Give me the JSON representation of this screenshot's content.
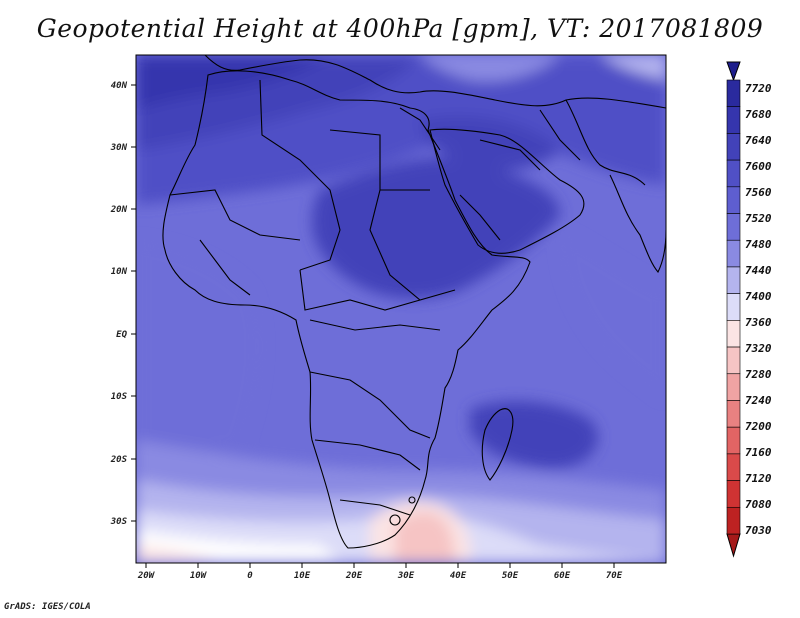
{
  "title": "Geopotential Height at 400hPa [gpm], VT: 2017081809",
  "credit": "GrADS: IGES/COLA",
  "map": {
    "lat_labels": [
      "40N",
      "30N",
      "20N",
      "10N",
      "EQ",
      "10S",
      "20S",
      "30S"
    ],
    "lon_labels": [
      "20W",
      "10W",
      "0",
      "10E",
      "20E",
      "30E",
      "40E",
      "50E",
      "60E",
      "70E"
    ]
  },
  "colorbar": {
    "labels": [
      "7720",
      "7680",
      "7640",
      "7600",
      "7560",
      "7520",
      "7480",
      "7440",
      "7400",
      "7360",
      "7320",
      "7280",
      "7240",
      "7200",
      "7160",
      "7120",
      "7080",
      "7030"
    ],
    "colors": [
      "#1e1e8c",
      "#2a2a9e",
      "#3535ad",
      "#4242b9",
      "#5050c6",
      "#5e5ed0",
      "#6e6ed8",
      "#8a8ae2",
      "#b4b4ee",
      "#dcdcf8",
      "#fbe4e4",
      "#f6c4c4",
      "#f0a3a3",
      "#e98181",
      "#e26464",
      "#da4a4a",
      "#cf3333",
      "#bd2222",
      "#a51a1a"
    ]
  }
}
